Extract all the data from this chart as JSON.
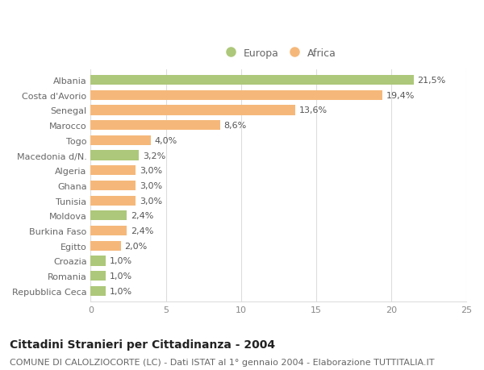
{
  "categories": [
    "Albania",
    "Costa d'Avorio",
    "Senegal",
    "Marocco",
    "Togo",
    "Macedonia d/N.",
    "Algeria",
    "Ghana",
    "Tunisia",
    "Moldova",
    "Burkina Faso",
    "Egitto",
    "Croazia",
    "Romania",
    "Repubblica Ceca"
  ],
  "values": [
    21.5,
    19.4,
    13.6,
    8.6,
    4.0,
    3.2,
    3.0,
    3.0,
    3.0,
    2.4,
    2.4,
    2.0,
    1.0,
    1.0,
    1.0
  ],
  "labels": [
    "21,5%",
    "19,4%",
    "13,6%",
    "8,6%",
    "4,0%",
    "3,2%",
    "3,0%",
    "3,0%",
    "3,0%",
    "2,4%",
    "2,4%",
    "2,0%",
    "1,0%",
    "1,0%",
    "1,0%"
  ],
  "colors": [
    "#adc87a",
    "#f5b87a",
    "#f5b87a",
    "#f5b87a",
    "#f5b87a",
    "#adc87a",
    "#f5b87a",
    "#f5b87a",
    "#f5b87a",
    "#adc87a",
    "#f5b87a",
    "#f5b87a",
    "#adc87a",
    "#adc87a",
    "#adc87a"
  ],
  "europa_color": "#adc87a",
  "africa_color": "#f5b87a",
  "xlim": [
    0,
    25
  ],
  "xticks": [
    0,
    5,
    10,
    15,
    20,
    25
  ],
  "background_color": "#ffffff",
  "grid_color": "#dddddd",
  "title": "Cittadini Stranieri per Cittadinanza - 2004",
  "subtitle": "COMUNE DI CALOLZIOCORTE (LC) - Dati ISTAT al 1° gennaio 2004 - Elaborazione TUTTITALIA.IT",
  "title_fontsize": 10,
  "subtitle_fontsize": 8,
  "label_fontsize": 8,
  "bar_label_fontsize": 8,
  "bar_height": 0.65
}
